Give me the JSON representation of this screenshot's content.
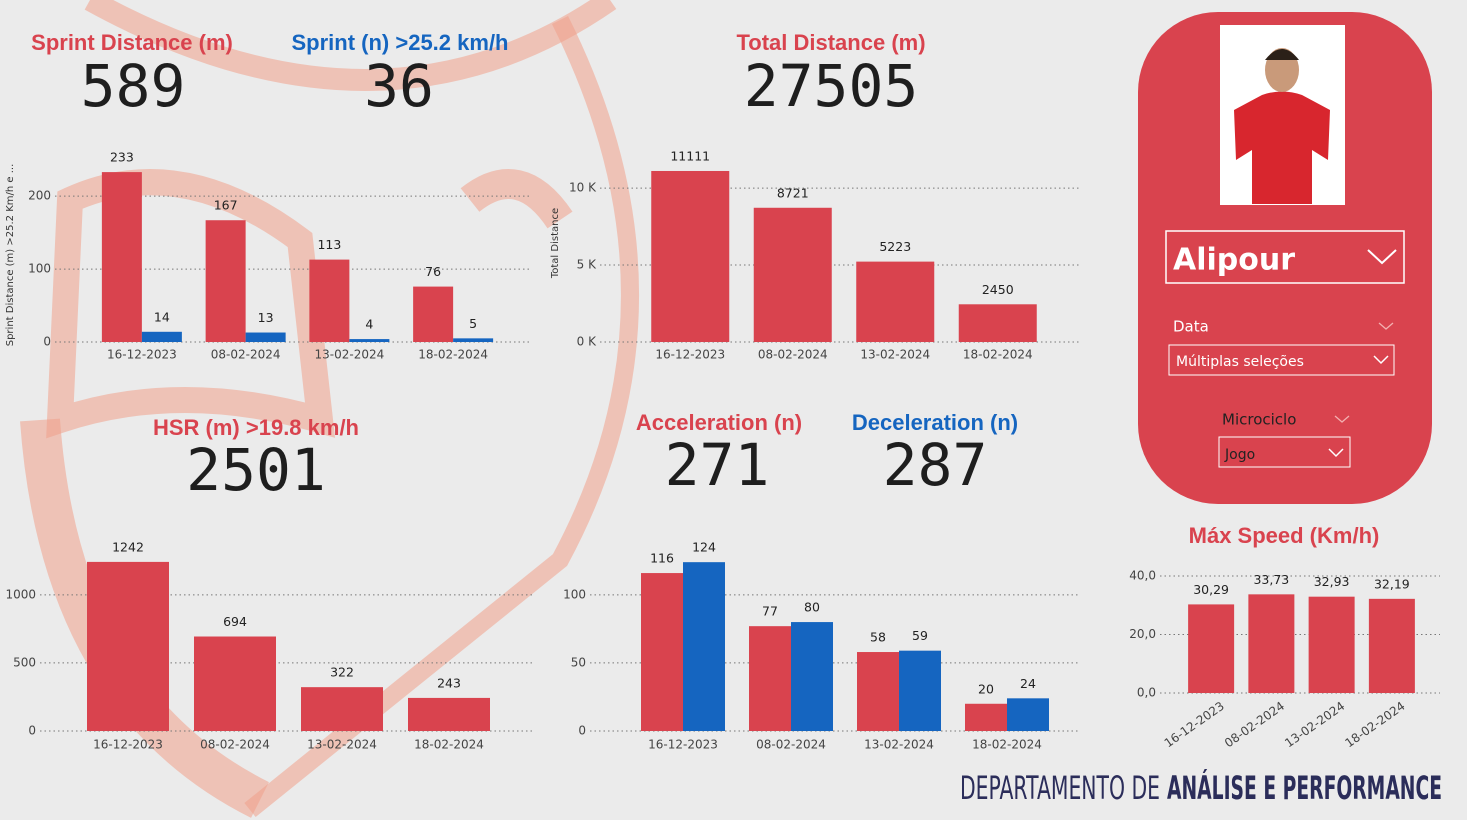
{
  "kpis": [
    {
      "label": "Sprint Distance (m)",
      "value": 589,
      "color": "#d9434e"
    },
    {
      "label": "Sprint (n) >25.2 km/h",
      "value": 36,
      "color": "#1565c0"
    },
    {
      "label": "Total Distance (m)",
      "value": 27505,
      "color": "#d9434e"
    },
    {
      "label": "HSR (m) >19.8 km/h",
      "value": 2501,
      "color": "#d9434e"
    },
    {
      "label": "Acceleration (n)",
      "value": 271,
      "color": "#d9434e"
    },
    {
      "label": "Deceleration (n)",
      "value": 287,
      "color": "#1565c0"
    }
  ],
  "chart_data": [
    {
      "type": "bar",
      "y_label": "Sprint Distance (m) >25.2 Km/h e ...",
      "categories": [
        "16-12-2023",
        "08-02-2024",
        "13-02-2024",
        "18-02-2024"
      ],
      "series": [
        {
          "color": "#d9434e",
          "values": [
            233,
            167,
            113,
            76
          ]
        },
        {
          "color": "#1565c0",
          "values": [
            14,
            13,
            4,
            5
          ]
        }
      ],
      "ylim": [
        0,
        240
      ],
      "yticks": [
        0,
        100,
        200
      ],
      "grid": true
    },
    {
      "type": "bar",
      "y_label": "Total Distance",
      "categories": [
        "16-12-2023",
        "08-02-2024",
        "13-02-2024",
        "18-02-2024"
      ],
      "series": [
        {
          "color": "#d9434e",
          "values": [
            11111,
            8721,
            5223,
            2450
          ]
        }
      ],
      "ylim": [
        0,
        11500
      ],
      "yticks": [
        {
          "value": 0,
          "label": "0 K"
        },
        {
          "value": 5000,
          "label": "5 K"
        },
        {
          "value": 10000,
          "label": "10 K"
        }
      ],
      "grid": true
    },
    {
      "type": "bar",
      "categories": [
        "16-12-2023",
        "08-02-2024",
        "13-02-2024",
        "18-02-2024"
      ],
      "series": [
        {
          "color": "#d9434e",
          "values": [
            1242,
            694,
            322,
            243
          ]
        }
      ],
      "ylim": [
        0,
        1300
      ],
      "yticks": [
        0,
        500,
        1000
      ],
      "grid": true
    },
    {
      "type": "bar",
      "categories": [
        "16-12-2023",
        "08-02-2024",
        "13-02-2024",
        "18-02-2024"
      ],
      "series": [
        {
          "color": "#d9434e",
          "values": [
            116,
            77,
            58,
            20
          ]
        },
        {
          "color": "#1565c0",
          "values": [
            124,
            80,
            59,
            24
          ]
        }
      ],
      "ylim": [
        0,
        130
      ],
      "yticks": [
        0,
        50,
        100
      ],
      "grid": true
    },
    {
      "type": "bar",
      "title": "Máx Speed (Km/h)",
      "categories": [
        "16-12-2023",
        "08-02-2024",
        "13-02-2024",
        "18-02-2024"
      ],
      "series": [
        {
          "color": "#d9434e",
          "values": [
            30.29,
            33.73,
            32.93,
            32.19
          ],
          "value_labels": [
            "30,29",
            "33,73",
            "32,93",
            "32,19"
          ]
        }
      ],
      "ylim": [
        0,
        40
      ],
      "yticks": [
        {
          "value": 0,
          "label": "0,0"
        },
        {
          "value": 20,
          "label": "20,0"
        },
        {
          "value": 40,
          "label": "40,0"
        }
      ],
      "grid": true,
      "rotate_x_labels": true
    }
  ],
  "player": {
    "name": "Alipour",
    "filters": [
      {
        "label": "Data",
        "selection": "Múltiplas seleções"
      },
      {
        "label": "Microciclo",
        "selection": "Jogo"
      }
    ]
  },
  "footer": {
    "prefix": "DEPARTAMENTO DE",
    "emphasis": "ANÁLISE E PERFORMANCE"
  }
}
